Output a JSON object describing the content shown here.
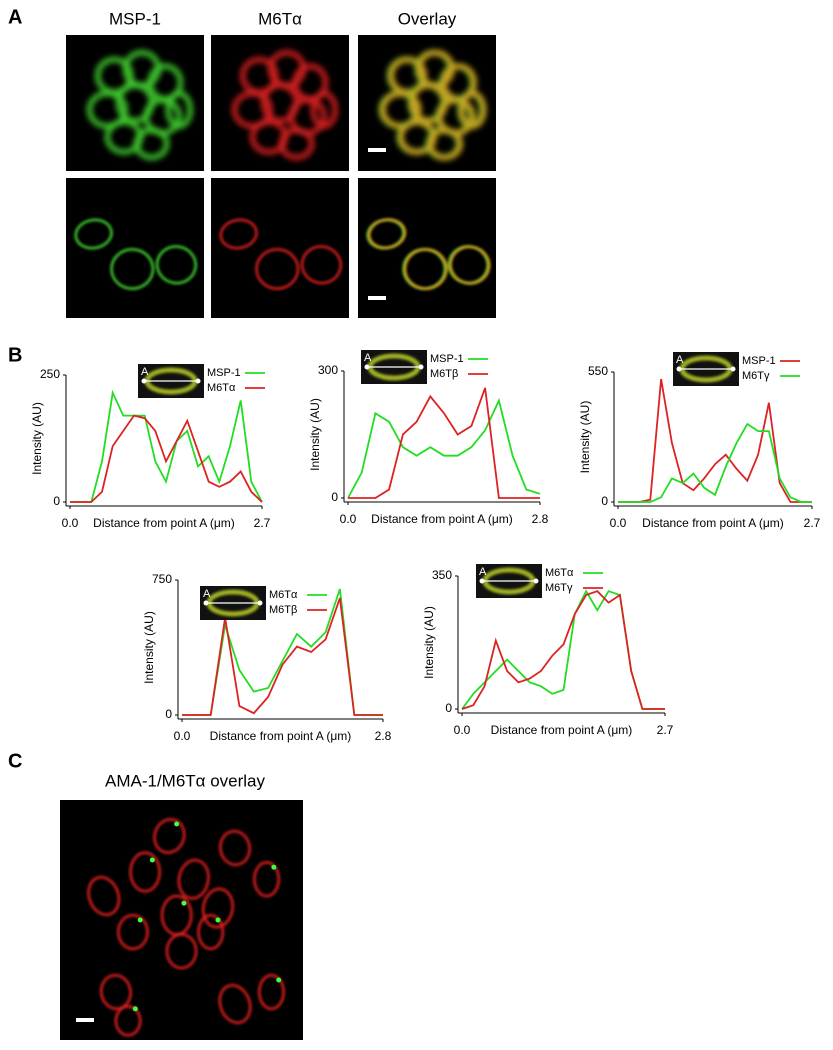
{
  "panel_labels": [
    "A",
    "B",
    "C"
  ],
  "panel_a": {
    "columns": [
      "MSP-1",
      "M6Tα",
      "Overlay"
    ]
  },
  "panel_c": {
    "title": "AMA-1/M6Tα overlay"
  },
  "chart_data": [
    {
      "type": "line",
      "ylabel": "Intensity (AU)",
      "xlabel": "Distance from point A (μm)",
      "point_label": "A",
      "x": [
        0,
        0.15,
        0.3,
        0.45,
        0.6,
        0.75,
        0.9,
        1.05,
        1.2,
        1.35,
        1.5,
        1.65,
        1.8,
        1.95,
        2.1,
        2.25,
        2.4,
        2.55,
        2.7
      ],
      "xlim": [
        0,
        2.7
      ],
      "xticks": [
        {
          "value": 0,
          "label": "0.0"
        },
        2.7
      ],
      "ylim": [
        0,
        250
      ],
      "yticks": [
        0,
        250
      ],
      "series": [
        {
          "name": "MSP-1",
          "color": "#22dd22",
          "values": [
            0,
            0,
            0,
            80,
            215,
            170,
            170,
            170,
            80,
            40,
            120,
            140,
            70,
            90,
            40,
            110,
            200,
            40,
            0
          ]
        },
        {
          "name": "M6Tα",
          "color": "#dd2222",
          "values": [
            0,
            0,
            0,
            20,
            110,
            140,
            170,
            165,
            140,
            80,
            120,
            160,
            100,
            40,
            30,
            40,
            60,
            20,
            0
          ]
        }
      ]
    },
    {
      "type": "line",
      "ylabel": "Intensity (AU)",
      "xlabel": "Distance from point A (μm)",
      "point_label": "A",
      "x": [
        0,
        0.2,
        0.4,
        0.6,
        0.8,
        1.0,
        1.2,
        1.4,
        1.6,
        1.8,
        2.0,
        2.2,
        2.4,
        2.6,
        2.8
      ],
      "xlim": [
        0,
        2.8
      ],
      "xticks": [
        {
          "value": 0,
          "label": "0.0"
        },
        2.8
      ],
      "ylim": [
        0,
        300
      ],
      "yticks": [
        0,
        300
      ],
      "series": [
        {
          "name": "MSP-1",
          "color": "#22dd22",
          "values": [
            0,
            60,
            200,
            180,
            120,
            100,
            120,
            100,
            100,
            120,
            160,
            230,
            100,
            20,
            10
          ]
        },
        {
          "name": "M6Tβ",
          "color": "#dd2222",
          "values": [
            0,
            0,
            0,
            20,
            150,
            180,
            240,
            200,
            150,
            170,
            260,
            0,
            0,
            0,
            0
          ]
        }
      ]
    },
    {
      "type": "line",
      "ylabel": "Intensity (AU)",
      "xlabel": "Distance from point A (μm)",
      "point_label": "A",
      "x": [
        0,
        0.15,
        0.3,
        0.45,
        0.6,
        0.75,
        0.9,
        1.05,
        1.2,
        1.35,
        1.5,
        1.65,
        1.8,
        1.95,
        2.1,
        2.25,
        2.4,
        2.55,
        2.7
      ],
      "xlim": [
        0,
        2.7
      ],
      "xticks": [
        {
          "value": 0,
          "label": "0.0"
        },
        2.7
      ],
      "ylim": [
        0,
        550
      ],
      "yticks": [
        0,
        550
      ],
      "series": [
        {
          "name": "MSP-1",
          "color": "#dd2222",
          "values": [
            0,
            0,
            0,
            10,
            520,
            250,
            80,
            50,
            100,
            160,
            200,
            140,
            90,
            200,
            420,
            80,
            0,
            0,
            0
          ]
        },
        {
          "name": "M6Tγ",
          "color": "#22dd22",
          "values": [
            0,
            0,
            0,
            0,
            20,
            100,
            80,
            120,
            60,
            30,
            150,
            250,
            330,
            300,
            300,
            100,
            20,
            0,
            0
          ]
        }
      ]
    },
    {
      "type": "line",
      "ylabel": "Intensity (AU)",
      "xlabel": "Distance from point A (μm)",
      "point_label": "A",
      "x": [
        0,
        0.2,
        0.4,
        0.6,
        0.8,
        1.0,
        1.2,
        1.4,
        1.6,
        1.8,
        2.0,
        2.2,
        2.4,
        2.6,
        2.8
      ],
      "xlim": [
        0,
        2.8
      ],
      "xticks": [
        {
          "value": 0,
          "label": "0.0"
        },
        2.8
      ],
      "ylim": [
        0,
        750
      ],
      "yticks": [
        0,
        750
      ],
      "series": [
        {
          "name": "M6Tα",
          "color": "#22dd22",
          "values": [
            0,
            0,
            0,
            500,
            250,
            130,
            150,
            300,
            450,
            380,
            460,
            700,
            0,
            0,
            0
          ]
        },
        {
          "name": "M6Tβ",
          "color": "#dd2222",
          "values": [
            0,
            0,
            0,
            540,
            50,
            10,
            100,
            280,
            380,
            350,
            420,
            650,
            0,
            0,
            0
          ]
        }
      ]
    },
    {
      "type": "line",
      "ylabel": "Intensity (AU)",
      "xlabel": "Distance from point A (μm)",
      "point_label": "A",
      "x": [
        0,
        0.15,
        0.3,
        0.45,
        0.6,
        0.75,
        0.9,
        1.05,
        1.2,
        1.35,
        1.5,
        1.65,
        1.8,
        1.95,
        2.1,
        2.25,
        2.4,
        2.55,
        2.7
      ],
      "xlim": [
        0,
        2.7
      ],
      "xticks": [
        {
          "value": 0,
          "label": "0.0"
        },
        2.7
      ],
      "ylim": [
        0,
        350
      ],
      "yticks": [
        0,
        350
      ],
      "series": [
        {
          "name": "M6Tα",
          "color": "#22dd22",
          "values": [
            0,
            40,
            70,
            100,
            130,
            100,
            70,
            60,
            40,
            50,
            250,
            310,
            260,
            310,
            300,
            100,
            0,
            0,
            0
          ]
        },
        {
          "name": "M6Tγ",
          "color": "#dd2222",
          "values": [
            0,
            10,
            60,
            180,
            100,
            70,
            80,
            100,
            140,
            170,
            250,
            300,
            310,
            280,
            300,
            100,
            0,
            0,
            0
          ]
        }
      ]
    }
  ]
}
